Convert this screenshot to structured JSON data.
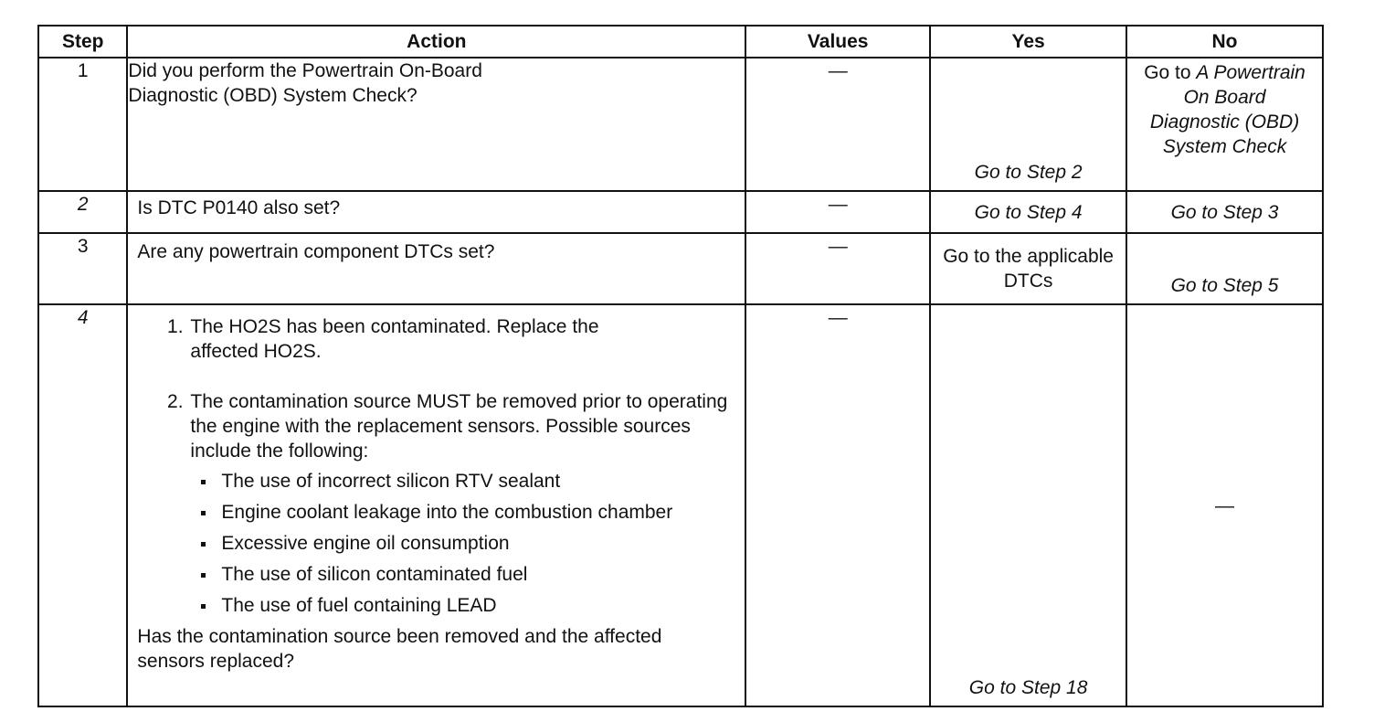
{
  "headers": {
    "step": "Step",
    "action": "Action",
    "values": "Values",
    "yes": "Yes",
    "no": "No"
  },
  "rows": [
    {
      "step": "1",
      "action": "Did you perform the Powertrain On-Board Diagnostic (OBD) System Check?",
      "values": "—",
      "yes": "Go to Step 2",
      "no_prefix": "Go to",
      "no_italic": "A Powertrain On Board Diagnostic (OBD) System Check"
    },
    {
      "step": "2",
      "action": "Is DTC P0140 also set?",
      "values": "—",
      "yes": "Go to Step 4",
      "no": "Go to Step 3"
    },
    {
      "step": "3",
      "action": "Are any powertrain component DTCs set?",
      "values": "—",
      "yes": "Go to the applicable DTCs",
      "no": "Go to Step 5"
    },
    {
      "step": "4",
      "action_items": [
        "The HO2S has been contaminated. Replace the affected HO2S.",
        "The contamination source MUST be removed prior to operating the engine with the replacement sensors. Possible sources include the following:"
      ],
      "bullets": [
        "The use of incorrect silicon RTV sealant",
        "Engine coolant leakage into the combustion chamber",
        "Excessive engine oil consumption",
        "The use of silicon contaminated fuel",
        "The use of fuel containing LEAD"
      ],
      "question": "Has the contamination source been removed and the affected sensors replaced?",
      "values": "—",
      "yes": "Go to Step 18",
      "no": "—"
    }
  ]
}
